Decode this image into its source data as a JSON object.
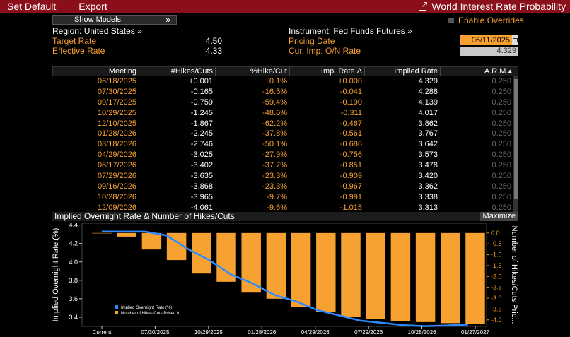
{
  "topbar": {
    "set_default": "Set Default",
    "export": "Export",
    "title": "World Interest Rate Probability"
  },
  "controls": {
    "show_models": "Show Models",
    "show_models_chevron": "»",
    "enable_overrides": "Enable Overrides"
  },
  "info": {
    "region": "Region: United States »",
    "target_rate_label": "Target Rate",
    "target_rate_value": "4.50",
    "effective_rate_label": "Effective Rate",
    "effective_rate_value": "4.33",
    "instrument": "Instrument: Fed Funds Futures »",
    "pricing_date_label": "Pricing Date",
    "pricing_date_value": "06/11/2025",
    "cur_imp_label": "Cur. Imp. O/N Rate",
    "cur_imp_value": "4.329"
  },
  "table": {
    "headers": [
      "Meeting",
      "#Hikes/Cuts",
      "%Hike/Cut",
      "Imp. Rate Δ",
      "Implied Rate",
      "A.R.M.▴"
    ],
    "rows": [
      [
        "06/18/2025",
        "+0.001",
        "+0.1%",
        "+0.000",
        "4.329",
        "0.250"
      ],
      [
        "07/30/2025",
        "-0.165",
        "-16.5%",
        "-0.041",
        "4.288",
        "0.250"
      ],
      [
        "09/17/2025",
        "-0.759",
        "-59.4%",
        "-0.190",
        "4.139",
        "0.250"
      ],
      [
        "10/29/2025",
        "-1.245",
        "-48.6%",
        "-0.311",
        "4.017",
        "0.250"
      ],
      [
        "12/10/2025",
        "-1.867",
        "-62.2%",
        "-0.467",
        "3.862",
        "0.250"
      ],
      [
        "01/28/2026",
        "-2.245",
        "-37.8%",
        "-0.561",
        "3.767",
        "0.250"
      ],
      [
        "03/18/2026",
        "-2.746",
        "-50.1%",
        "-0.686",
        "3.642",
        "0.250"
      ],
      [
        "04/29/2026",
        "-3.025",
        "-27.9%",
        "-0.756",
        "3.573",
        "0.250"
      ],
      [
        "06/17/2026",
        "-3.402",
        "-37.7%",
        "-0.851",
        "3.478",
        "0.250"
      ],
      [
        "07/29/2026",
        "-3.635",
        "-23.3%",
        "-0.909",
        "3.420",
        "0.250"
      ],
      [
        "09/16/2026",
        "-3.868",
        "-23.3%",
        "-0.967",
        "3.362",
        "0.250"
      ],
      [
        "10/28/2026",
        "-3.965",
        "-9.7%",
        "-0.991",
        "3.338",
        "0.250"
      ],
      [
        "12/09/2026",
        "-4.061",
        "-9.6%",
        "-1.015",
        "3.313",
        "0.250"
      ]
    ]
  },
  "chart_header": {
    "title": "Implied Overnight Rate & Number of Hikes/Cuts",
    "maximize": "Maximize"
  },
  "chart_data": {
    "type": "bar",
    "left_axis_label": "Implied Overnight Rate (%)",
    "right_axis_label": "Number of Hikes/Cuts Pric...",
    "left_ylim": [
      3.3,
      4.42
    ],
    "right_ylim": [
      -4.3,
      0.45
    ],
    "left_ticks": [
      "4.4",
      "4.2",
      "4.0",
      "3.8",
      "3.6",
      "3.4"
    ],
    "right_ticks": [
      "0.0",
      "-0.5",
      "-1.0",
      "-1.5",
      "-2.0",
      "-2.5",
      "-3.0",
      "-3.5",
      "-4.0"
    ],
    "x_tick_labels": [
      "Current",
      "07/30/2025",
      "10/29/2025",
      "01/28/2026",
      "04/29/2026",
      "07/29/2026",
      "10/28/2026",
      "01/27/2027"
    ],
    "bars_hikes_cuts": [
      0.001,
      -0.165,
      -0.759,
      -1.245,
      -1.867,
      -2.245,
      -2.746,
      -3.025,
      -3.402,
      -3.635,
      -3.868,
      -3.965,
      -4.061,
      -4.1,
      -4.15,
      -4.2
    ],
    "line_implied_rate": [
      4.33,
      4.329,
      4.329,
      4.288,
      4.139,
      4.017,
      3.862,
      3.767,
      3.642,
      3.573,
      3.478,
      3.42,
      3.362,
      3.338,
      3.313,
      3.303,
      3.31,
      3.32
    ],
    "legend": [
      "Implied Overnight Rate (%)",
      "Number of Hikes/Cuts Priced In"
    ],
    "colors": {
      "line": "#2e8bff",
      "bars": "#f7a131"
    }
  }
}
